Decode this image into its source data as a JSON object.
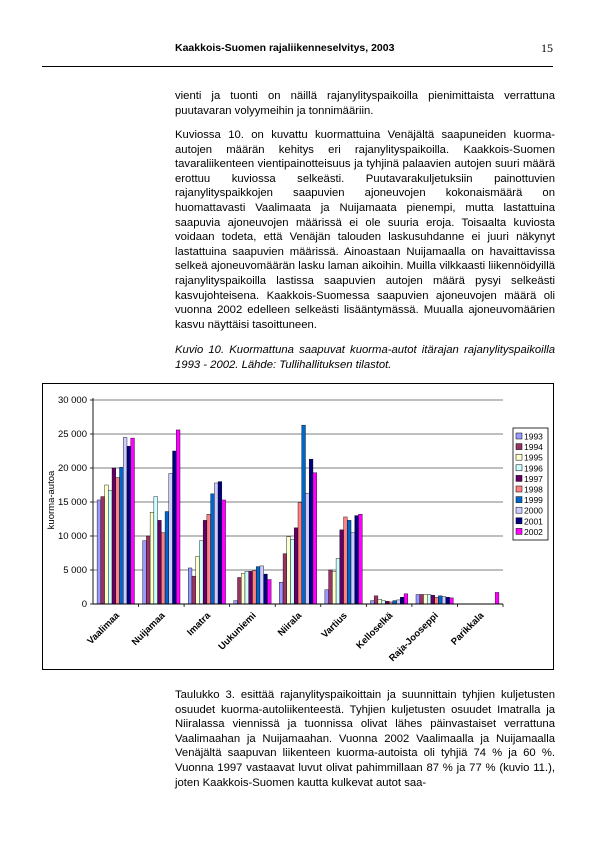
{
  "header": {
    "title": "Kaakkois-Suomen rajaliikenneselvitys, 2003",
    "page_number": "15"
  },
  "paragraphs": [
    "vienti ja tuonti on näillä rajanylityspaikoilla pienimittaista verrattuna puutavaran volyymeihin ja tonnimääriin.",
    "Kuviossa 10. on kuvattu kuormattuina Venäjältä saapuneiden kuorma-autojen määrän kehitys eri rajanylityspaikoilla. Kaakkois-Suomen tavaraliikenteen vientipainotteisuus ja tyhjinä palaavien autojen suuri määrä erottuu kuviossa selkeästi. Puutavarakuljetuksiin painottuvien rajanylityspaikkojen saapuvien ajoneuvojen kokonaismäärä on huomattavasti Vaalimaata ja Nuijamaata pienempi, mutta lastattuina saapuvia ajoneuvojen määrissä ei ole suuria eroja. Toisaalta kuviosta voidaan todeta, että Venäjän talouden laskusuhdanne ei juuri näkynyt lastattuina saapuvien määrissä. Ainoastaan Nuijamaalla on havaittavissa selkeä ajoneuvomäärän lasku laman aikoihin. Muilla vilkkaasti liikennöidyillä rajanylityspaikoilla lastissa saapuvien autojen määrä pysyi selkeästi kasvujohteisena. Kaakkois-Suomessa saapuvien ajoneuvojen määrä oli vuonna 2002 edelleen selkeästi lisääntymässä. Muualla ajoneuvomäärien kasvu näyttäisi tasoittuneen.",
    "Taulukko 3. esittää rajanylityspaikoittain ja suunnittain tyhjien kuljetusten osuudet kuorma-autoliikenteestä. Tyhjien kuljetusten osuudet Imatralla ja Niiralassa viennissä ja tuonnissa olivat lähes päinvastaiset verrattuna Vaalimaahan ja Nuijamaahan. Vuonna 2002 Vaalimaalla ja Nuijamaalla Venäjältä saapuvan liikenteen kuorma-autoista oli tyhjiä 74 % ja 60 %. Vuonna 1997 vastaavat luvut olivat pahimmillaan 87 % ja 77 % (kuvio 11.), joten Kaakkois-Suomen kautta kulkevat autot saa-"
  ],
  "caption": "Kuvio 10. Kuormattuna saapuvat kuorma-autot itärajan rajanylityspaikoilla 1993 - 2002. Lähde: Tullihallituksen tilastot.",
  "chart_data": {
    "type": "bar",
    "title": "",
    "xlabel": "",
    "ylabel": "kuorma-autoa",
    "ylim": [
      0,
      30000
    ],
    "yticks": [
      0,
      5000,
      10000,
      15000,
      20000,
      25000,
      30000
    ],
    "ytick_labels": [
      "0",
      "5 000",
      "10 000",
      "15 000",
      "20 000",
      "25 000",
      "30 000"
    ],
    "grid": true,
    "legend_position": "right",
    "categories": [
      "Vaalimaa",
      "Nuijamaa",
      "Imatra",
      "Uukuniemi",
      "Niirala",
      "Vartius",
      "Kelloselkä",
      "Raja-Jooseppi",
      "Parikkala"
    ],
    "series": [
      {
        "name": "1993",
        "color": "#9999ff",
        "values": [
          15300,
          9300,
          5300,
          500,
          3200,
          2100,
          500,
          1400,
          0
        ]
      },
      {
        "name": "1994",
        "color": "#993366",
        "values": [
          15800,
          10000,
          4100,
          3900,
          7400,
          5000,
          1200,
          1400,
          0
        ]
      },
      {
        "name": "1995",
        "color": "#ffffcc",
        "values": [
          17500,
          13500,
          7000,
          4500,
          9900,
          4800,
          700,
          1400,
          0
        ]
      },
      {
        "name": "1996",
        "color": "#ccffff",
        "values": [
          16700,
          15800,
          9300,
          4800,
          9500,
          6700,
          500,
          1400,
          0
        ]
      },
      {
        "name": "1997",
        "color": "#660066",
        "values": [
          20000,
          12300,
          12300,
          4800,
          11200,
          10900,
          400,
          1300,
          0
        ]
      },
      {
        "name": "1998",
        "color": "#ff8080",
        "values": [
          18600,
          10500,
          13200,
          4900,
          14900,
          12800,
          300,
          1000,
          0
        ]
      },
      {
        "name": "1999",
        "color": "#0066cc",
        "values": [
          20100,
          13600,
          16200,
          5500,
          26300,
          12300,
          500,
          1200,
          0
        ]
      },
      {
        "name": "2000",
        "color": "#ccccff",
        "values": [
          24500,
          19200,
          17800,
          5600,
          16300,
          10500,
          600,
          1100,
          0
        ]
      },
      {
        "name": "2001",
        "color": "#000080",
        "values": [
          23200,
          22500,
          18000,
          4400,
          21300,
          13000,
          1000,
          1000,
          0
        ]
      },
      {
        "name": "2002",
        "color": "#ff00ff",
        "values": [
          24400,
          25600,
          15300,
          3600,
          19300,
          13200,
          1500,
          900,
          1700
        ]
      }
    ]
  }
}
